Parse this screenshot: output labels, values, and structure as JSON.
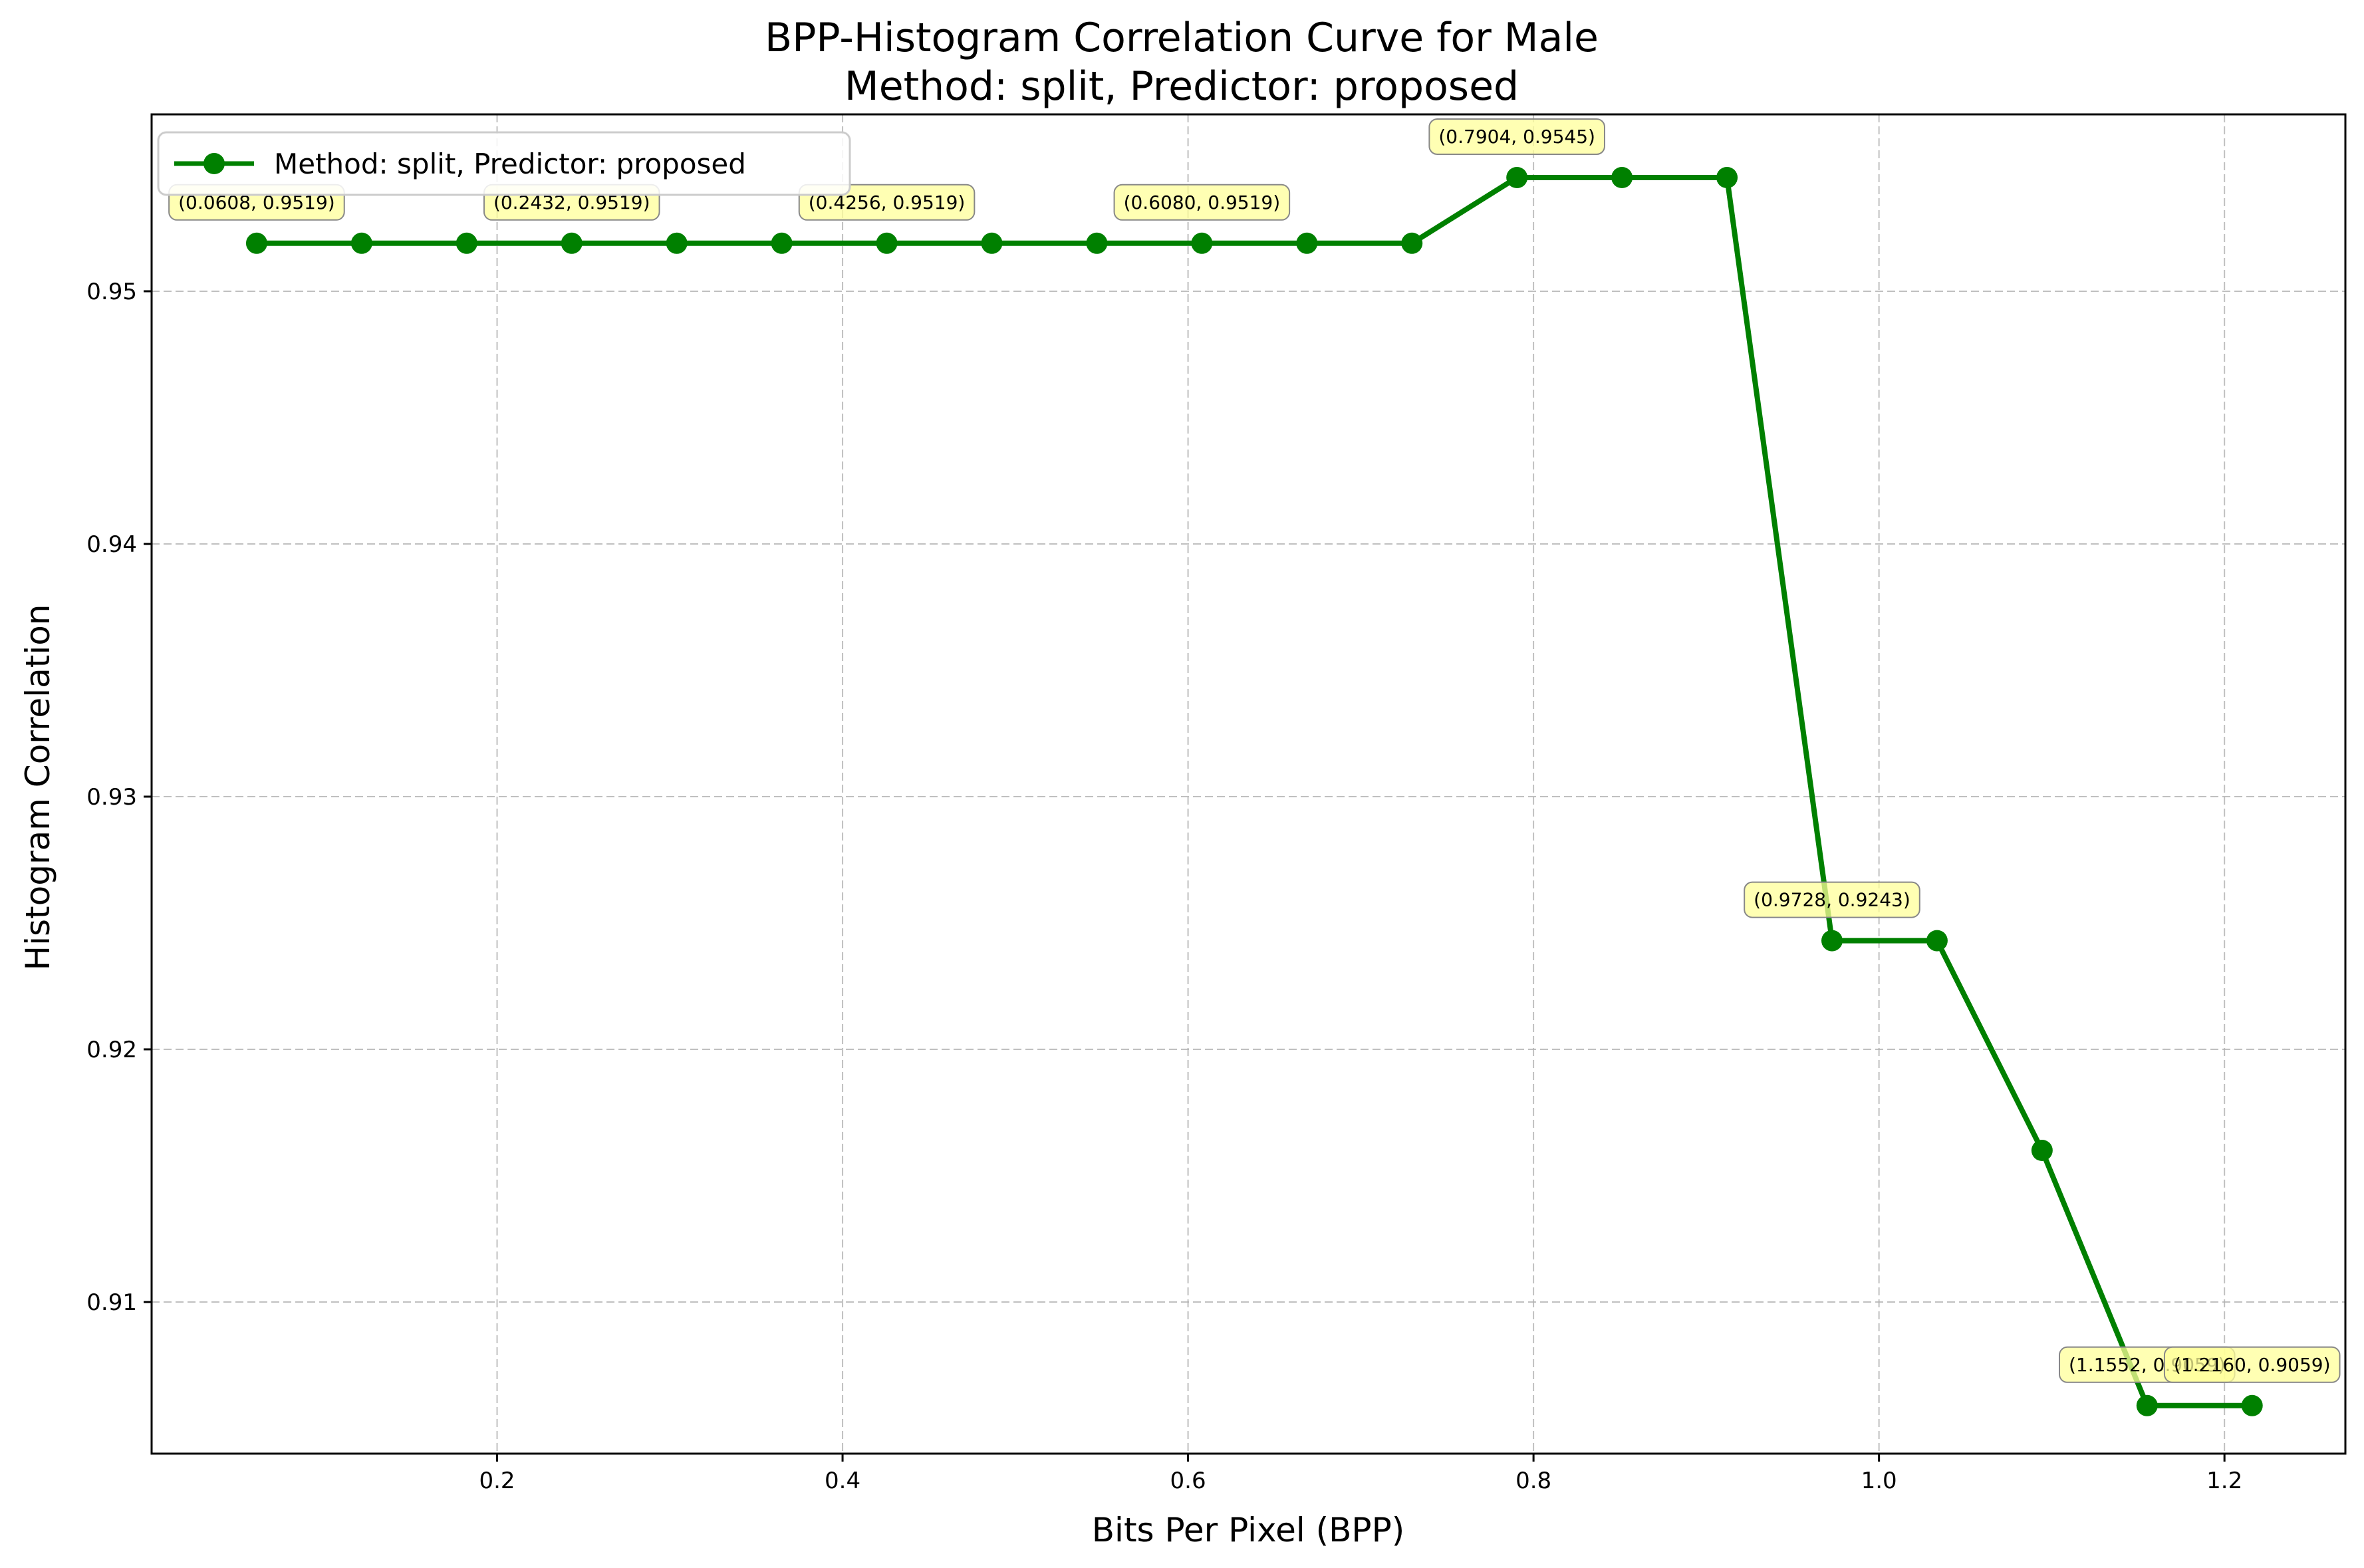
{
  "chart_data": {
    "type": "line",
    "title": "BPP-Histogram Correlation Curve for Male",
    "subtitle": "Method: split, Predictor: proposed",
    "xlabel": "Bits Per Pixel (BPP)",
    "ylabel": "Histogram Correlation",
    "xlim": [
      0.0,
      1.27
    ],
    "ylim": [
      0.904,
      0.957
    ],
    "xticks": [
      0.2,
      0.4,
      0.6,
      0.8,
      1.0,
      1.2
    ],
    "xtick_labels": [
      "0.2",
      "0.4",
      "0.6",
      "0.8",
      "1.0",
      "1.2"
    ],
    "yticks": [
      0.91,
      0.92,
      0.93,
      0.94,
      0.95
    ],
    "ytick_labels": [
      "0.91",
      "0.92",
      "0.93",
      "0.94",
      "0.95"
    ],
    "grid": true,
    "legend_position": "top-left",
    "series": [
      {
        "name": "Method: split, Predictor: proposed",
        "color": "#008000",
        "marker": "circle",
        "x": [
          0.0608,
          0.1216,
          0.1824,
          0.2432,
          0.304,
          0.3648,
          0.4256,
          0.4864,
          0.5472,
          0.608,
          0.6688,
          0.7296,
          0.7904,
          0.8512,
          0.912,
          0.9728,
          1.0336,
          1.0944,
          1.1552,
          1.216
        ],
        "y": [
          0.9519,
          0.9519,
          0.9519,
          0.9519,
          0.9519,
          0.9519,
          0.9519,
          0.9519,
          0.9519,
          0.9519,
          0.9519,
          0.9519,
          0.9545,
          0.9545,
          0.9545,
          0.9243,
          0.9243,
          0.916,
          0.9059,
          0.9059
        ]
      }
    ],
    "annotations": [
      {
        "x": 0.0608,
        "y": 0.9519,
        "text": "(0.0608, 0.9519)"
      },
      {
        "x": 0.2432,
        "y": 0.9519,
        "text": "(0.2432, 0.9519)"
      },
      {
        "x": 0.4256,
        "y": 0.9519,
        "text": "(0.4256, 0.9519)"
      },
      {
        "x": 0.608,
        "y": 0.9519,
        "text": "(0.6080, 0.9519)"
      },
      {
        "x": 0.7904,
        "y": 0.9545,
        "text": "(0.7904, 0.9545)"
      },
      {
        "x": 0.9728,
        "y": 0.9243,
        "text": "(0.9728, 0.9243)"
      },
      {
        "x": 1.1552,
        "y": 0.9059,
        "text": "(1.1552, 0.9059)"
      },
      {
        "x": 1.216,
        "y": 0.9059,
        "text": "(1.2160, 0.9059)"
      }
    ],
    "annotation_color": "#ffff99"
  }
}
